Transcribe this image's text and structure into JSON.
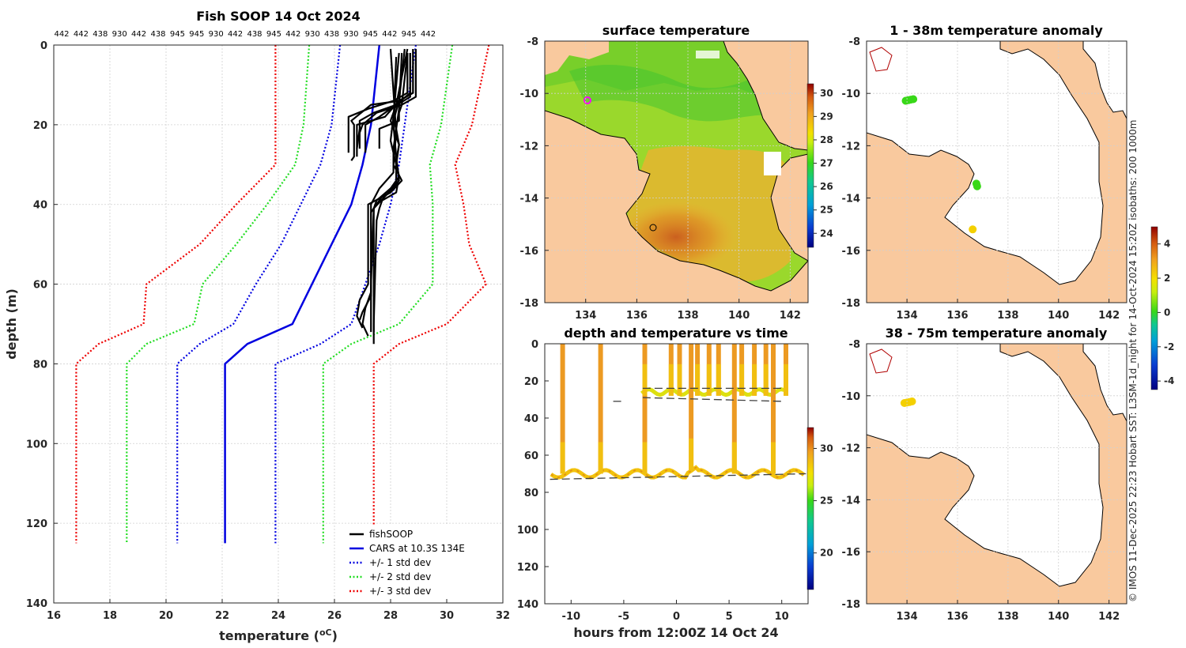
{
  "page": {
    "copyright": "© IMOS 11-Dec-2025 22:23 Hobart SST: L3SM-1d_night for 14-Oct-2024 15:20Z isobaths: 200  1000m"
  },
  "chart_data": [
    {
      "type": "line",
      "id": "profile",
      "title": "Fish SOOP 14 Oct 2024",
      "xlabel": "temperature (",
      "xlabel_unit": "oC",
      "xlabel_end": ")",
      "ylabel": "depth (m)",
      "xlim": [
        16,
        32
      ],
      "ylim": [
        0,
        140
      ],
      "xticks": [
        "16",
        "18",
        "20",
        "22",
        "24",
        "26",
        "28",
        "30",
        "32"
      ],
      "yticks": [
        "0",
        "20",
        "40",
        "60",
        "80",
        "100",
        "120",
        "140"
      ],
      "top_labels": [
        "442",
        "442",
        "438",
        "930",
        "442",
        "438",
        "945",
        "945",
        "930",
        "442",
        "438",
        "945",
        "442",
        "930",
        "438",
        "930",
        "945",
        "442",
        "945",
        "442"
      ],
      "colors": {
        "fish": "#000000",
        "cars": "#0000e0",
        "std1": "#0000e0",
        "std2": "#22dd22",
        "std3": "#ee0000"
      },
      "legend": [
        "fishSOOP",
        "CARS at 10.3S 134E",
        "+/- 1 std dev",
        "+/- 2 std dev",
        "+/- 3 std dev"
      ],
      "cars": {
        "depth": [
          0,
          20,
          30,
          40,
          50,
          60,
          70,
          75,
          80,
          125
        ],
        "temp": [
          27.6,
          27.3,
          27.0,
          26.6,
          25.9,
          25.2,
          24.5,
          22.9,
          22.1,
          22.1
        ]
      },
      "std_lines": [
        {
          "name": "+1",
          "style": "std1",
          "depth": [
            0,
            20,
            30,
            40,
            50,
            60,
            70,
            75,
            80,
            125
          ],
          "temp": [
            28.9,
            28.5,
            28.3,
            28.0,
            27.6,
            27.1,
            26.6,
            25.5,
            23.9,
            23.9
          ]
        },
        {
          "name": "-1",
          "style": "std1",
          "depth": [
            0,
            20,
            30,
            40,
            50,
            60,
            70,
            75,
            80,
            125
          ],
          "temp": [
            26.2,
            25.9,
            25.5,
            24.8,
            24.1,
            23.2,
            22.4,
            21.2,
            20.4,
            20.4
          ]
        },
        {
          "name": "+2",
          "style": "std2",
          "depth": [
            0,
            20,
            30,
            40,
            50,
            60,
            70,
            75,
            80,
            125
          ],
          "temp": [
            30.2,
            29.8,
            29.4,
            29.5,
            29.5,
            29.5,
            28.3,
            26.6,
            25.6,
            25.6
          ]
        },
        {
          "name": "-2",
          "style": "std2",
          "depth": [
            0,
            20,
            30,
            40,
            50,
            60,
            70,
            75,
            80,
            125
          ],
          "temp": [
            25.1,
            24.9,
            24.6,
            23.6,
            22.5,
            21.3,
            21.0,
            19.3,
            18.6,
            18.6
          ]
        },
        {
          "name": "+3",
          "style": "std3",
          "depth": [
            0,
            20,
            30,
            40,
            50,
            60,
            70,
            75,
            80,
            125
          ],
          "temp": [
            31.5,
            30.9,
            30.3,
            30.6,
            30.8,
            31.4,
            30.0,
            28.3,
            27.4,
            27.4
          ]
        },
        {
          "name": "-3",
          "style": "std3",
          "depth": [
            0,
            20,
            30,
            40,
            50,
            60,
            70,
            75,
            80,
            125
          ],
          "temp": [
            23.9,
            23.9,
            23.9,
            22.5,
            21.2,
            19.3,
            19.2,
            17.6,
            16.8,
            16.8
          ]
        }
      ],
      "fish_profiles": [
        {
          "depth": [
            1,
            12,
            14,
            15,
            19,
            20,
            28,
            29
          ],
          "temp": [
            28.8,
            28.8,
            28.3,
            27.3,
            26.6,
            26.7,
            26.7,
            26.6
          ]
        },
        {
          "depth": [
            2,
            12,
            15,
            17,
            19,
            21,
            26,
            28
          ],
          "temp": [
            28.7,
            28.7,
            28.2,
            27.4,
            26.9,
            26.9,
            26.8,
            26.8
          ]
        },
        {
          "depth": [
            1,
            13,
            15,
            17,
            20,
            22,
            26
          ],
          "temp": [
            28.9,
            28.9,
            28.4,
            27.5,
            27.0,
            26.9,
            26.9
          ]
        },
        {
          "depth": [
            2,
            12,
            14,
            16,
            18,
            19,
            27
          ],
          "temp": [
            28.6,
            28.6,
            28.1,
            27.2,
            26.5,
            26.5,
            26.5
          ]
        },
        {
          "depth": [
            2,
            13,
            16,
            18,
            20,
            27
          ],
          "temp": [
            28.7,
            28.7,
            28.0,
            27.6,
            27.1,
            27.1
          ]
        },
        {
          "depth": [
            1,
            12,
            14,
            18,
            20,
            26
          ],
          "temp": [
            28.8,
            28.8,
            28.3,
            27.8,
            26.8,
            26.8
          ]
        },
        {
          "depth": [
            2,
            15,
            17,
            19,
            21,
            26
          ],
          "temp": [
            28.6,
            28.4,
            28.3,
            28.3,
            27.6,
            27.6
          ]
        },
        {
          "depth": [
            1,
            14,
            19,
            21,
            25,
            29,
            33,
            37,
            39,
            41,
            44,
            70,
            72
          ],
          "temp": [
            28.5,
            28.3,
            28.1,
            28.2,
            28.3,
            28.2,
            28.3,
            28.2,
            27.7,
            27.6,
            27.5,
            27.4,
            27.4
          ]
        },
        {
          "depth": [
            1,
            15,
            19,
            25,
            30,
            33,
            36,
            39,
            41,
            60,
            72
          ],
          "temp": [
            28.6,
            28.2,
            28.0,
            28.3,
            28.2,
            28.3,
            28.0,
            27.5,
            27.4,
            27.3,
            27.3
          ]
        },
        {
          "depth": [
            2,
            18,
            24,
            30,
            35,
            38,
            41,
            45,
            68,
            72,
            75
          ],
          "temp": [
            28.3,
            28.1,
            28.0,
            28.2,
            28.2,
            27.8,
            27.4,
            27.4,
            27.4,
            27.4,
            27.4
          ]
        },
        {
          "depth": [
            3,
            20,
            28,
            34,
            38,
            42,
            62,
            66,
            70,
            73
          ],
          "temp": [
            28.2,
            28.1,
            28.2,
            28.3,
            27.7,
            27.3,
            27.3,
            27.1,
            27.0,
            27.2
          ]
        },
        {
          "depth": [
            1,
            22,
            30,
            34,
            37,
            40,
            60,
            64,
            68,
            71
          ],
          "temp": [
            28.0,
            28.2,
            28.1,
            28.4,
            28.0,
            27.2,
            27.2,
            26.9,
            26.8,
            27.0
          ]
        },
        {
          "depth": [
            2,
            16,
            26,
            32,
            36,
            40,
            63,
            67,
            69
          ],
          "temp": [
            28.4,
            28.3,
            28.1,
            28.1,
            27.6,
            27.3,
            27.3,
            27.0,
            26.9
          ]
        }
      ]
    },
    {
      "type": "heatmap",
      "id": "sst",
      "title": "surface temperature",
      "xlim": [
        132.4,
        142.7
      ],
      "ylim": [
        -18,
        -8
      ],
      "xticks": [
        "134",
        "136",
        "138",
        "140",
        "142"
      ],
      "yticks": [
        "-8",
        "-10",
        "-12",
        "-14",
        "-16",
        "-18"
      ],
      "colorbar": {
        "ticks": [
          "24",
          "25",
          "26",
          "27",
          "28",
          "29",
          "30"
        ],
        "min": 23.4,
        "max": 30.4
      }
    },
    {
      "type": "scatter",
      "id": "timeseries",
      "title": "depth and temperature vs time",
      "xlabel": "hours from 12:00Z 14 Oct 24",
      "xlim": [
        -12.5,
        12.5
      ],
      "ylim": [
        0,
        140
      ],
      "xticks": [
        "-10",
        "-5",
        "0",
        "5",
        "10"
      ],
      "yticks": [
        "0",
        "20",
        "40",
        "60",
        "80",
        "100",
        "120",
        "140"
      ],
      "colorbar": {
        "ticks": [
          "20",
          "25",
          "30"
        ],
        "min": 16.5,
        "max": 32.0
      },
      "casts": [
        {
          "t": -10.8,
          "d": 70
        },
        {
          "t": -7.2,
          "d": 70
        },
        {
          "t": -3.0,
          "d": 70
        },
        {
          "t": 1.4,
          "d": 68
        },
        {
          "t": 5.5,
          "d": 70
        },
        {
          "t": 9.2,
          "d": 70
        },
        {
          "t": -3.0,
          "d": 28
        },
        {
          "t": -0.5,
          "d": 28
        },
        {
          "t": 0.3,
          "d": 28
        },
        {
          "t": 2.0,
          "d": 28
        },
        {
          "t": 3.1,
          "d": 28
        },
        {
          "t": 4.0,
          "d": 28
        },
        {
          "t": 6.2,
          "d": 28
        },
        {
          "t": 7.4,
          "d": 28
        },
        {
          "t": 8.5,
          "d": 28
        },
        {
          "t": 10.4,
          "d": 28
        }
      ]
    },
    {
      "type": "scatter",
      "id": "anom_upper",
      "title": "1 - 38m temperature anomaly",
      "xlim": [
        132.4,
        142.7
      ],
      "ylim": [
        -18,
        -8
      ],
      "xticks": [
        "134",
        "136",
        "138",
        "140",
        "142"
      ],
      "yticks": [
        "-8",
        "-10",
        "-12",
        "-14",
        "-16",
        "-18"
      ],
      "points": [
        {
          "lon": 133.95,
          "lat": -10.28,
          "anom": 0.3
        },
        {
          "lon": 134.05,
          "lat": -10.26,
          "anom": 0.4
        },
        {
          "lon": 134.15,
          "lat": -10.24,
          "anom": 0.5
        },
        {
          "lon": 134.25,
          "lat": -10.22,
          "anom": 0.3
        },
        {
          "lon": 136.75,
          "lat": -13.45,
          "anom": 0.5
        },
        {
          "lon": 136.78,
          "lat": -13.55,
          "anom": 0.4
        },
        {
          "lon": 136.6,
          "lat": -15.2,
          "anom": 2.1
        }
      ],
      "colorbar": {
        "ticks": [
          "-4",
          "-2",
          "0",
          "2",
          "4"
        ],
        "min": -4.5,
        "max": 5.0
      }
    },
    {
      "type": "scatter",
      "id": "anom_lower",
      "title": "38 - 75m temperature anomaly",
      "xlim": [
        132.4,
        142.7
      ],
      "ylim": [
        -18,
        -8
      ],
      "xticks": [
        "134",
        "136",
        "138",
        "140",
        "142"
      ],
      "yticks": [
        "-8",
        "-10",
        "-12",
        "-14",
        "-16",
        "-18"
      ],
      "points": [
        {
          "lon": 133.9,
          "lat": -10.28,
          "anom": 2.3
        },
        {
          "lon": 134.0,
          "lat": -10.26,
          "anom": 2.2
        },
        {
          "lon": 134.1,
          "lat": -10.24,
          "anom": 2.4
        },
        {
          "lon": 134.2,
          "lat": -10.22,
          "anom": 2.3
        }
      ]
    }
  ]
}
